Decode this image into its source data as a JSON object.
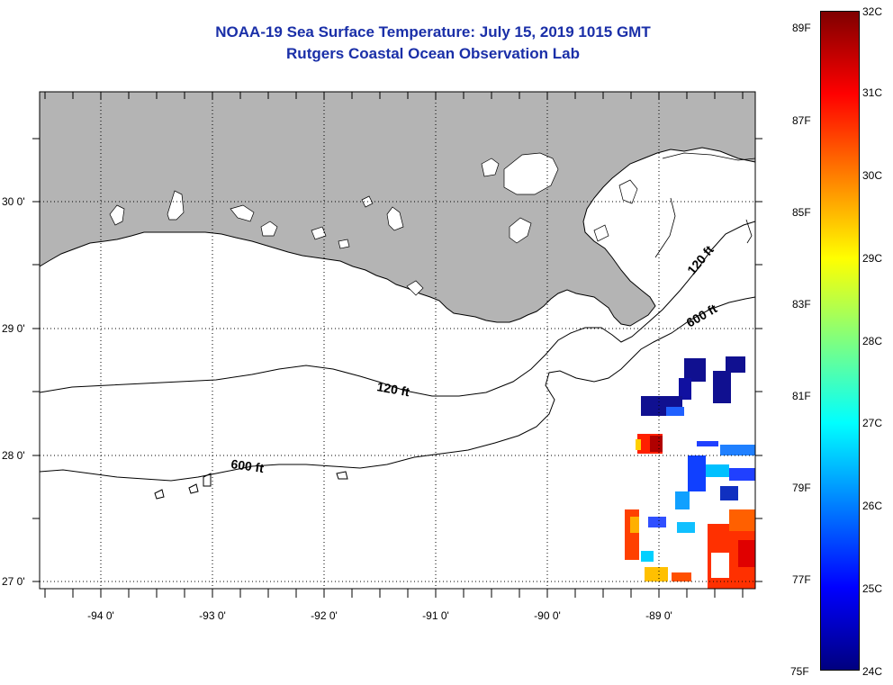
{
  "title": {
    "line1": "NOAA-19 Sea Surface Temperature:  July 15, 2019 1015 GMT",
    "line2": "Rutgers Coastal Ocean Observation Lab"
  },
  "map": {
    "region": "Northern Gulf of Mexico / Louisiana coast",
    "lon_range": [
      -94.55,
      -88.25
    ],
    "lat_range": [
      26.97,
      30.85
    ],
    "land_color": "#b4b4b4",
    "lon_ticks": [
      {
        "value": -94,
        "label": "-94 0'"
      },
      {
        "value": -93,
        "label": "-93 0'"
      },
      {
        "value": -92,
        "label": "-92 0'"
      },
      {
        "value": -91,
        "label": "-91 0'"
      },
      {
        "value": -90,
        "label": "-90 0'"
      },
      {
        "value": -89,
        "label": "-89 0'"
      }
    ],
    "lat_ticks": [
      {
        "value": 30,
        "label": "30 0'"
      },
      {
        "value": 29,
        "label": "29 0'"
      },
      {
        "value": 28,
        "label": "28 0'"
      },
      {
        "value": 27,
        "label": "27 0'"
      }
    ],
    "contour_labels": [
      {
        "text": "120 ft",
        "depth": "120 ft"
      },
      {
        "text": "600 ft",
        "depth": "600 ft"
      },
      {
        "text": "120 ft",
        "depth": "120 ft"
      },
      {
        "text": "600 ft",
        "depth": "600 ft"
      }
    ]
  },
  "colorbar": {
    "fahrenheit_labels": [
      "89F",
      "87F",
      "85F",
      "83F",
      "81F",
      "79F",
      "77F",
      "75F"
    ],
    "celsius_labels": [
      "32C",
      "31C",
      "30C",
      "29C",
      "28C",
      "27C",
      "26C",
      "25C",
      "24C"
    ],
    "min_c": 24,
    "max_c": 32,
    "colors": [
      "#00007f",
      "#0000ff",
      "#007fff",
      "#00ffff",
      "#7fff7f",
      "#ffff00",
      "#ff7f00",
      "#ff0000",
      "#7f0000"
    ]
  }
}
